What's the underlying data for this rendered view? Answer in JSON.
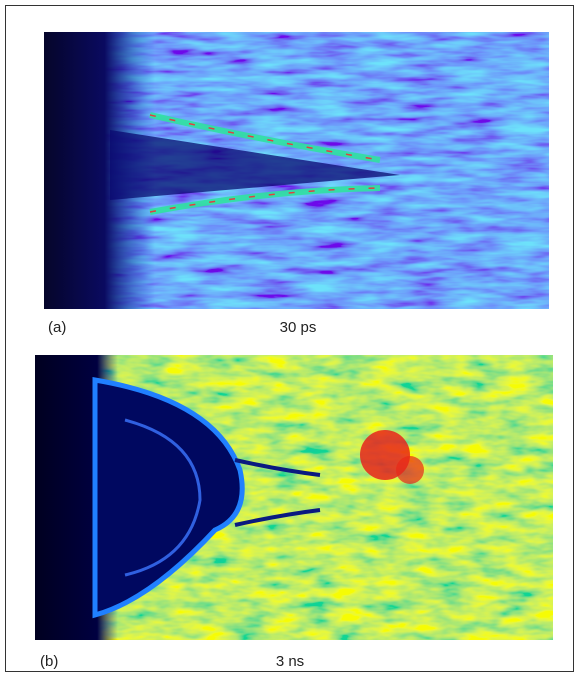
{
  "panels": [
    {
      "label": "(a)",
      "caption": "30 ps"
    },
    {
      "label": "(b)",
      "caption": "3 ns"
    }
  ]
}
